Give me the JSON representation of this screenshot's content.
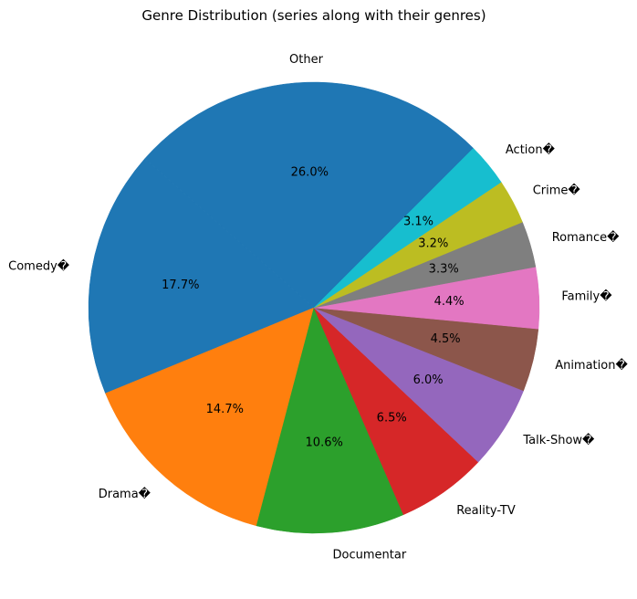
{
  "chart_data": {
    "type": "pie",
    "title": "Genre Distribution (series along with their genres)",
    "start_angle_deg": 45,
    "direction": "counterclockwise",
    "slices": [
      {
        "label": "Other",
        "value": 26.0,
        "pct_label": "26.0%",
        "color": "#1f77b4"
      },
      {
        "label": "Comedy�",
        "value": 17.7,
        "pct_label": "17.7%",
        "color": "#1f77b4"
      },
      {
        "label": "Drama�",
        "value": 14.7,
        "pct_label": "14.7%",
        "color": "#ff7f0e"
      },
      {
        "label": "Documentar",
        "value": 10.6,
        "pct_label": "10.6%",
        "color": "#2ca02c"
      },
      {
        "label": "Reality-TV",
        "value": 6.5,
        "pct_label": "6.5%",
        "color": "#d62728"
      },
      {
        "label": "Talk-Show�",
        "value": 6.0,
        "pct_label": "6.0%",
        "color": "#9467bd"
      },
      {
        "label": "Animation�",
        "value": 4.5,
        "pct_label": "4.5%",
        "color": "#8c564b"
      },
      {
        "label": "Family�",
        "value": 4.4,
        "pct_label": "4.4%",
        "color": "#e377c2"
      },
      {
        "label": "Romance�",
        "value": 3.3,
        "pct_label": "3.3%",
        "color": "#7f7f7f"
      },
      {
        "label": "Crime�",
        "value": 3.2,
        "pct_label": "3.2%",
        "color": "#bcbd22"
      },
      {
        "label": "Action�",
        "value": 3.1,
        "pct_label": "3.1%",
        "color": "#17becf"
      }
    ]
  }
}
